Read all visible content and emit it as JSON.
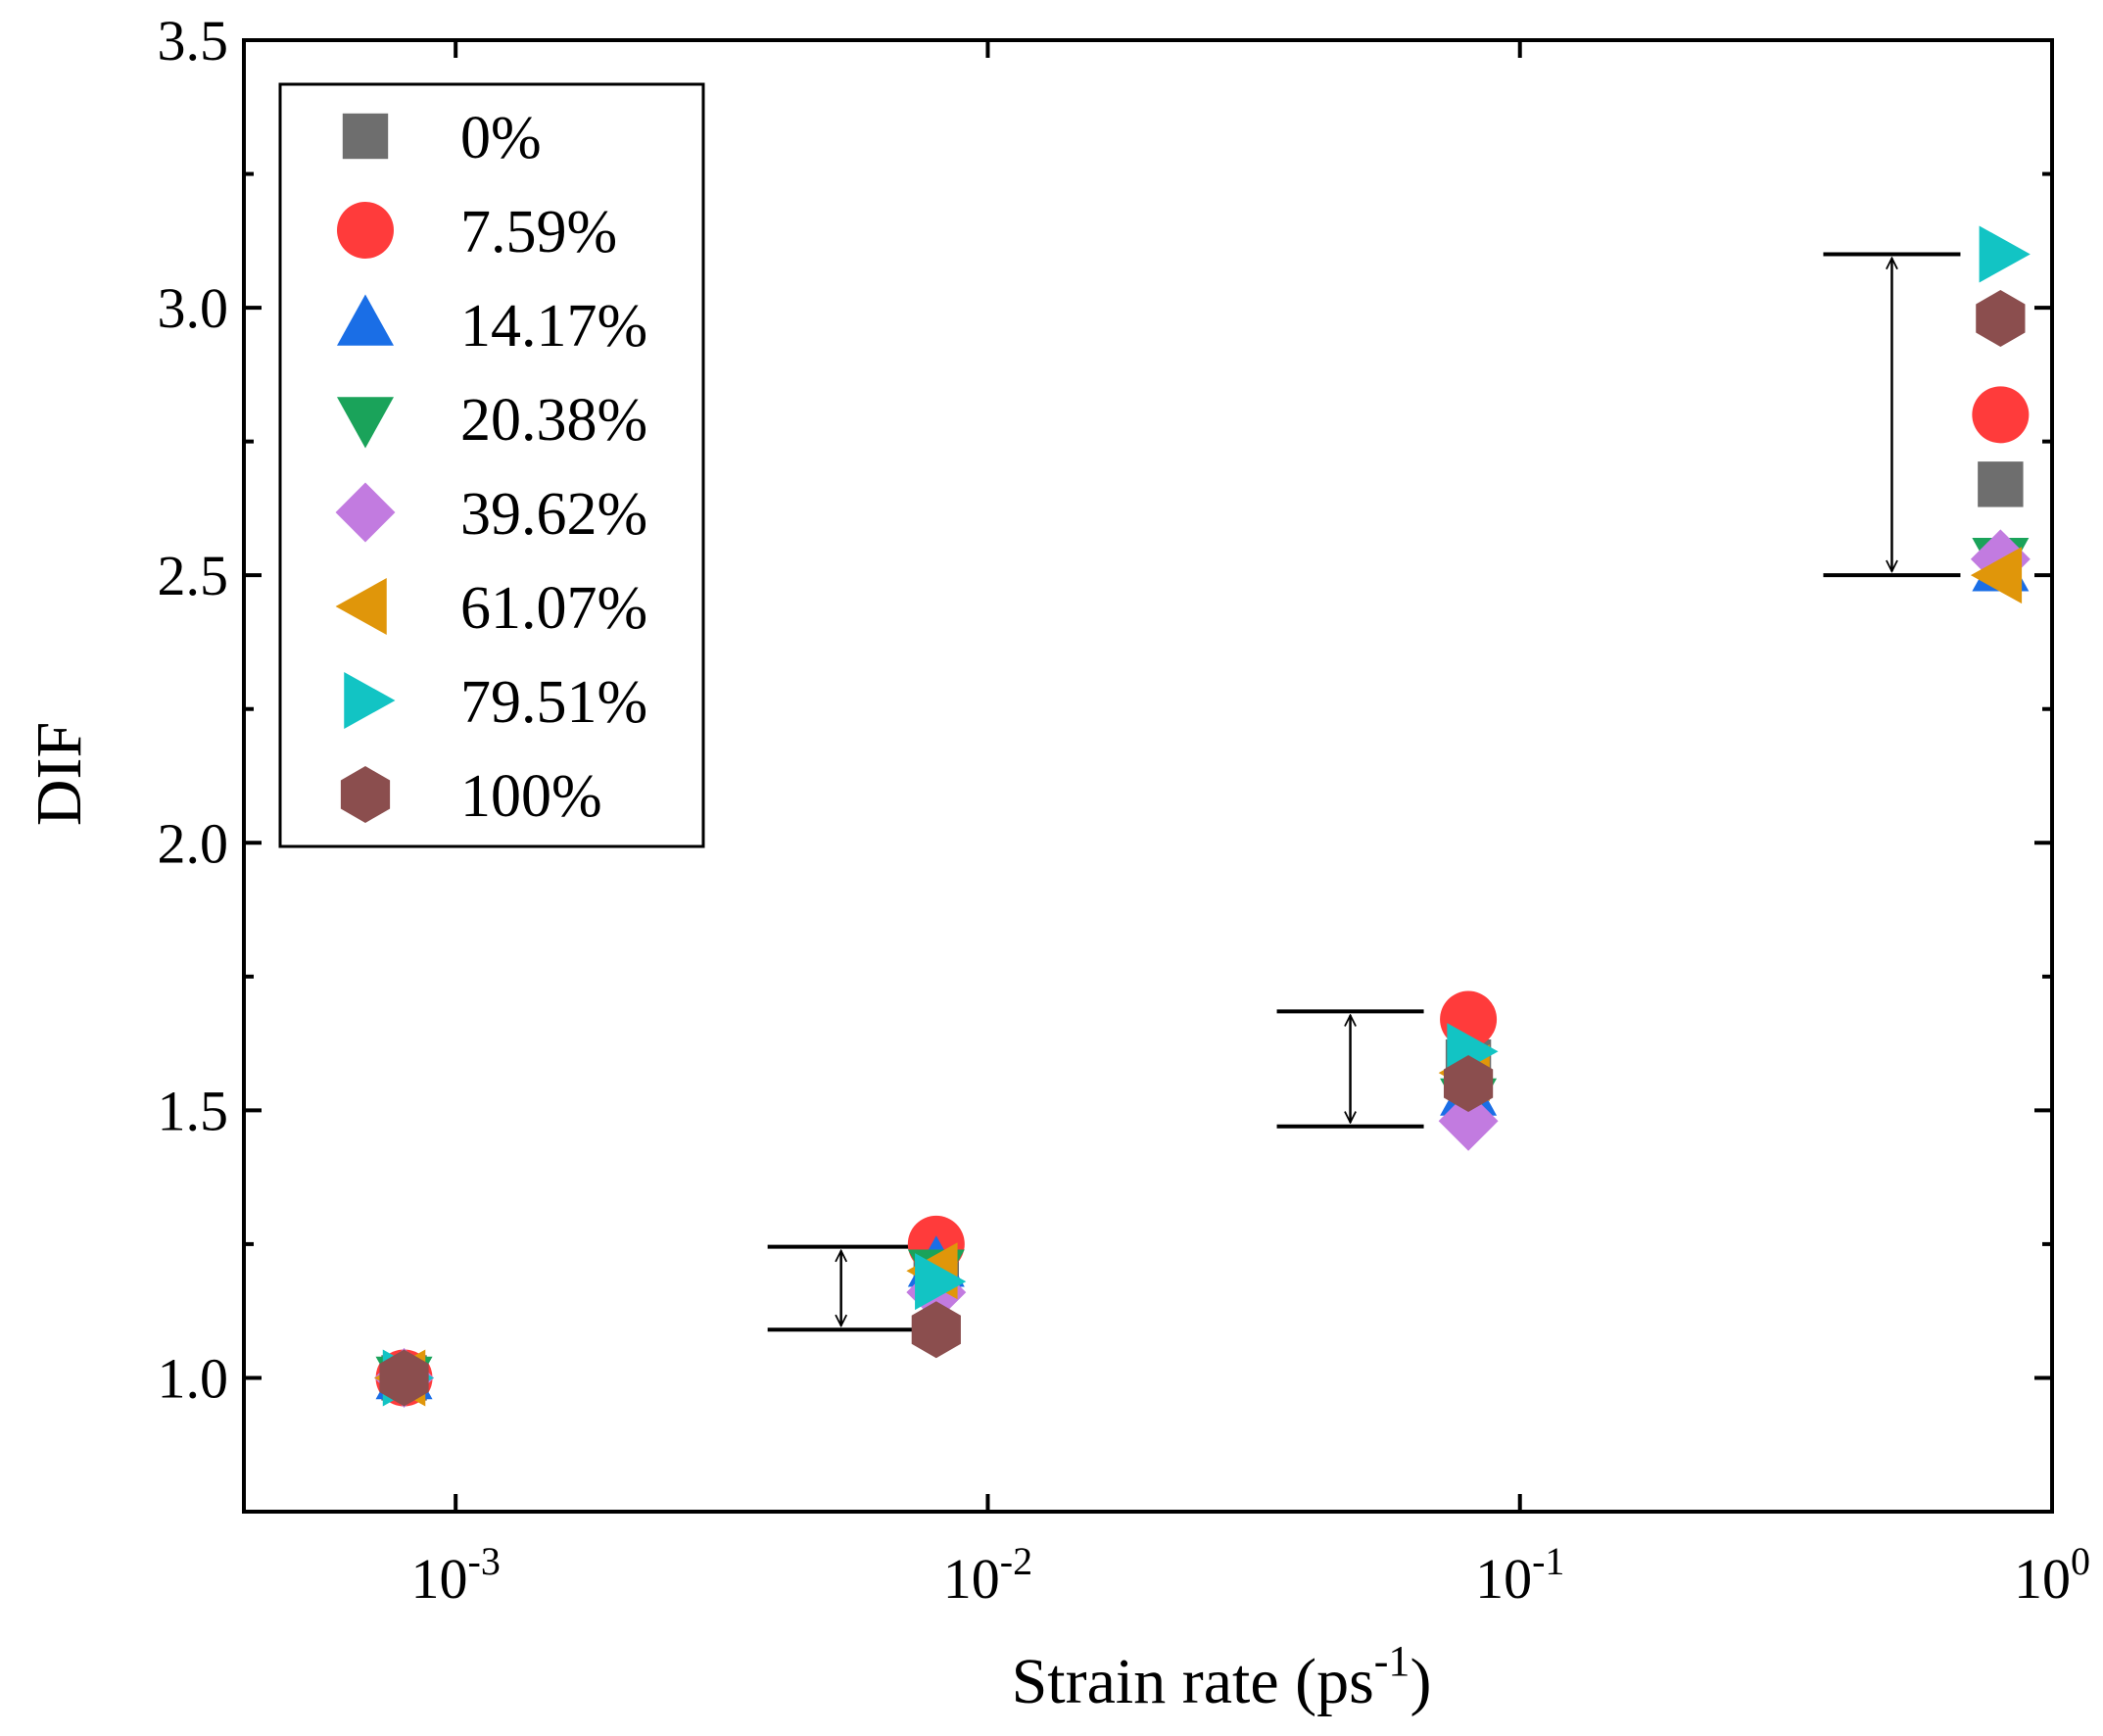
{
  "chart_data": {
    "type": "scatter",
    "title": "",
    "xlabel": "Strain rate (ps",
    "xlabel_sup": "-1",
    "xlabel_end": ")",
    "ylabel": "DIF",
    "xscale": "log",
    "xlim": [
      0.0004,
      1.0
    ],
    "ylim": [
      0.75,
      3.5
    ],
    "x_ticks": [
      {
        "value": 0.001,
        "base": "10",
        "exp": "-3"
      },
      {
        "value": 0.01,
        "base": "10",
        "exp": "-2"
      },
      {
        "value": 0.1,
        "base": "10",
        "exp": "-1"
      },
      {
        "value": 1.0,
        "base": "10",
        "exp": "0"
      }
    ],
    "y_ticks": [
      {
        "value": 1.0,
        "label": "1.0"
      },
      {
        "value": 1.5,
        "label": "1.5"
      },
      {
        "value": 2.0,
        "label": "2.0"
      },
      {
        "value": 2.5,
        "label": "2.5"
      },
      {
        "value": 3.0,
        "label": "3.0"
      },
      {
        "value": 3.5,
        "label": "3.5"
      }
    ],
    "legend_position": "top-left",
    "grid": false,
    "x": [
      0.0008,
      0.008,
      0.08,
      0.8
    ],
    "series": [
      {
        "name": "0%",
        "marker": "square",
        "color": "#6e6e6e",
        "values": [
          1.0,
          1.2,
          1.59,
          2.67
        ]
      },
      {
        "name": "7.59%",
        "marker": "circle",
        "color": "#ff3b3b",
        "values": [
          1.0,
          1.25,
          1.67,
          2.8
        ]
      },
      {
        "name": "14.17%",
        "marker": "triangle-up",
        "color": "#1a6ee6",
        "values": [
          1.0,
          1.21,
          1.53,
          2.51
        ]
      },
      {
        "name": "20.38%",
        "marker": "triangle-down",
        "color": "#1aa35a",
        "values": [
          1.0,
          1.2,
          1.52,
          2.53
        ]
      },
      {
        "name": "39.62%",
        "marker": "diamond",
        "color": "#c27be0",
        "values": [
          1.0,
          1.16,
          1.48,
          2.53
        ]
      },
      {
        "name": "61.07%",
        "marker": "triangle-left",
        "color": "#e0960a",
        "values": [
          1.0,
          1.2,
          1.57,
          2.5
        ]
      },
      {
        "name": "79.51%",
        "marker": "triangle-right",
        "color": "#12c4c4",
        "values": [
          1.0,
          1.18,
          1.61,
          3.1
        ]
      },
      {
        "name": "100%",
        "marker": "hexagon",
        "color": "#8b4e4e",
        "values": [
          1.0,
          1.09,
          1.55,
          2.98
        ]
      }
    ],
    "annotations": [
      {
        "type": "range-arrow",
        "x": 0.0053,
        "y_low": 1.09,
        "y_high": 1.245
      },
      {
        "type": "range-arrow",
        "x": 0.048,
        "y_low": 1.47,
        "y_high": 1.685
      },
      {
        "type": "range-arrow",
        "x": 0.5,
        "y_low": 2.5,
        "y_high": 3.1
      }
    ]
  }
}
